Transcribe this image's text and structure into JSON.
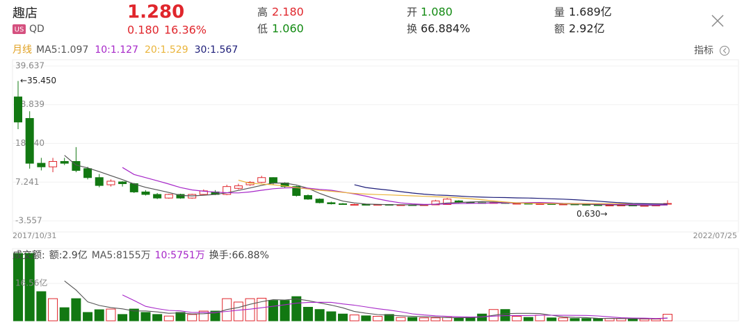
{
  "header": {
    "name": "趣店",
    "market": "US",
    "symbol": "QD",
    "price": "1.280",
    "change": "0.180",
    "change_pct": "16.36%",
    "high_label": "高",
    "high": "2.180",
    "low_label": "低",
    "low": "1.060",
    "open_label": "开",
    "open": "1.080",
    "turnover_label": "换",
    "turnover": "66.884%",
    "volume_label": "量",
    "volume": "1.689亿",
    "amount_label": "额",
    "amount": "2.92亿"
  },
  "toolbar": {
    "period": "月线",
    "indicators": "指标"
  },
  "chart_data": [
    {
      "type": "candlestick",
      "categories": [
        "2017/10/31",
        null,
        null,
        null,
        null,
        null,
        null,
        null,
        null,
        null,
        null,
        null,
        null,
        null,
        null,
        null,
        null,
        null,
        null,
        null,
        null,
        null,
        null,
        null,
        null,
        null,
        null,
        null,
        null,
        null,
        null,
        null,
        null,
        null,
        null,
        null,
        null,
        null,
        null,
        null,
        null,
        null,
        null,
        null,
        null,
        null,
        null,
        null,
        null,
        null,
        null,
        null,
        null,
        null,
        null,
        null,
        "2022/07/25"
      ],
      "open": [
        31,
        25,
        12.5,
        11.5,
        13,
        13,
        11,
        8.5,
        6.5,
        7.3,
        6.8,
        4.5,
        3.8,
        2.8,
        3.8,
        2.8,
        3.8,
        4.5,
        3.8,
        5.5,
        6.5,
        7.2,
        8.5,
        7,
        6,
        3.5,
        2.5,
        1.5,
        1.2,
        1.0,
        1.0,
        0.9,
        1.0,
        0.9,
        0.9,
        0.8,
        0.9,
        1.0,
        2.0,
        1.6,
        1.5,
        1.4,
        1.5,
        1.3,
        1.3,
        1.2,
        1.2,
        1.1,
        1.1,
        1.0,
        0.9,
        0.8,
        0.8,
        0.8,
        0.7,
        0.7,
        1.08
      ],
      "close": [
        24,
        12.5,
        11.5,
        13,
        12.5,
        10.5,
        8.5,
        6.3,
        7.5,
        6.8,
        4.5,
        3.8,
        2.8,
        3.8,
        2.8,
        3.8,
        4.8,
        3.8,
        6,
        6.2,
        7.2,
        8.5,
        7,
        6,
        3.5,
        2.5,
        1.5,
        1.2,
        1.0,
        1.0,
        0.9,
        1.0,
        0.9,
        0.9,
        0.8,
        0.9,
        2.0,
        2.5,
        1.6,
        1.5,
        1.4,
        1.5,
        1.3,
        1.3,
        1.2,
        1.2,
        1.1,
        1.1,
        1.0,
        0.9,
        0.8,
        0.8,
        0.8,
        0.7,
        0.7,
        0.8,
        1.28
      ],
      "high": [
        35.45,
        27,
        14,
        14,
        14,
        17,
        11.5,
        9.5,
        8,
        7.5,
        7,
        5,
        4.2,
        4,
        4,
        4,
        5.2,
        5,
        6.5,
        6.8,
        7.5,
        9,
        8.6,
        7.2,
        6.2,
        3.8,
        2.7,
        1.8,
        1.4,
        1.2,
        1.2,
        1.1,
        1.1,
        1.0,
        1.0,
        1.0,
        2.3,
        2.8,
        2.2,
        1.8,
        1.6,
        1.7,
        1.6,
        1.5,
        1.4,
        1.3,
        1.3,
        1.2,
        1.2,
        1.1,
        1.0,
        0.9,
        0.9,
        0.9,
        0.8,
        0.9,
        2.18
      ],
      "low": [
        22,
        11,
        10.5,
        10,
        12,
        10,
        8,
        5.8,
        6,
        6,
        4.2,
        3.5,
        2.5,
        2.6,
        2.6,
        2.6,
        3.6,
        3.6,
        3.6,
        5.2,
        6.2,
        7,
        6.5,
        5.6,
        3.2,
        2.3,
        1.3,
        1.0,
        0.9,
        0.85,
        0.8,
        0.85,
        0.8,
        0.8,
        0.75,
        0.75,
        0.85,
        0.9,
        1.4,
        1.3,
        1.3,
        1.3,
        1.2,
        1.2,
        1.1,
        1.1,
        1.0,
        1.0,
        0.9,
        0.8,
        0.7,
        0.63,
        0.7,
        0.65,
        0.65,
        0.7,
        1.06
      ],
      "up_color": "#e0262c",
      "down_color": "#127812",
      "ylim": [
        -3.557,
        39.637
      ],
      "yticks": [
        39.637,
        28.839,
        {
          "value": 18.04,
          "label": "18.040"
        },
        7.241,
        -3.557
      ],
      "ma": [
        {
          "name": "MA5:1.097",
          "period": 5,
          "color": "#555555"
        },
        {
          "name": "10:1.127",
          "period": 10,
          "color": "#a626c8"
        },
        {
          "name": "20:1.529",
          "period": 20,
          "color": "#eab43a"
        },
        {
          "name": "30:1.567",
          "period": 30,
          "color": "#1c1c78"
        }
      ],
      "max_label": "←35.450",
      "min_label": "0.630→"
    },
    {
      "type": "bar",
      "title": "成交额:",
      "values": [
        29.8,
        29.8,
        12.9,
        9.8,
        5.8,
        9.8,
        3.7,
        4.9,
        5.2,
        2.8,
        5.2,
        3.7,
        2.8,
        2.1,
        3.7,
        2.8,
        4.3,
        4.3,
        9.8,
        8.3,
        9.8,
        10,
        9,
        9,
        10.7,
        6,
        5,
        4,
        3,
        2.6,
        2.2,
        2,
        2.8,
        1.5,
        1.5,
        1.3,
        1.3,
        1.5,
        1.2,
        1.5,
        3,
        5,
        5,
        2,
        1.5,
        2.5,
        1.3,
        1.3,
        1,
        1,
        1,
        1,
        1,
        0.8,
        0.8,
        0.8,
        2.9
      ],
      "ylim": [
        0,
        29.8
      ],
      "yticks": [
        {
          "value": 16.56,
          "label": "16.56亿"
        }
      ],
      "ma": [
        {
          "name": "MA5:8155万",
          "period": 5,
          "color": "#555555"
        },
        {
          "name": "10:5751万",
          "period": 10,
          "color": "#a626c8"
        }
      ],
      "stats": [
        "额:2.9亿",
        "换手:66.88%"
      ]
    }
  ]
}
